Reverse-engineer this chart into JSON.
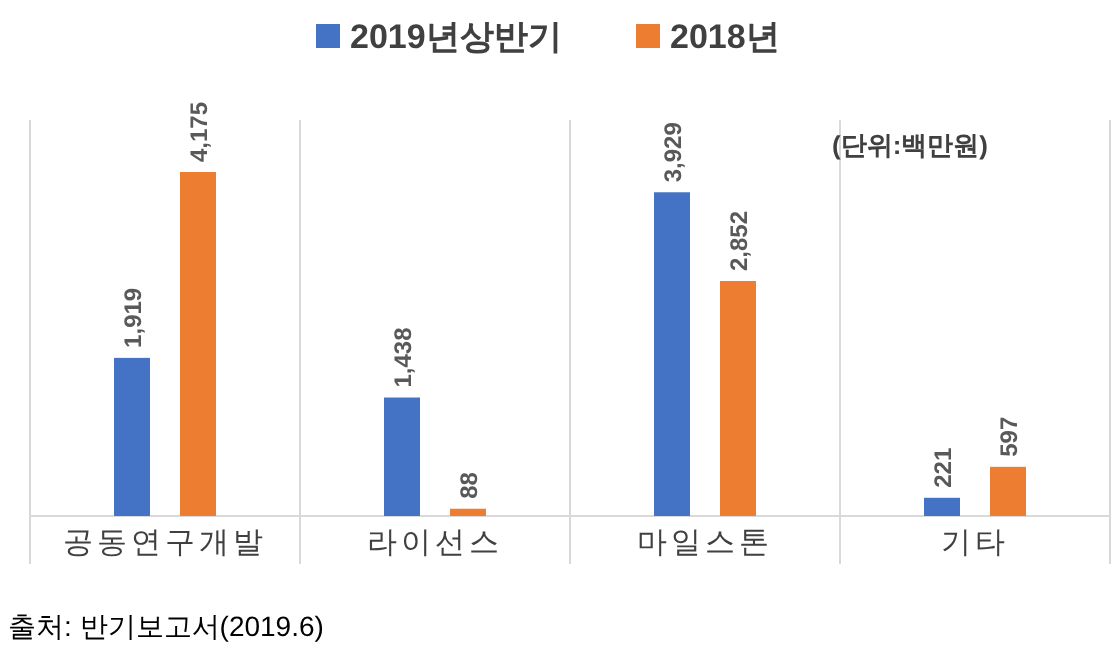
{
  "chart_data": {
    "type": "bar",
    "relative": false,
    "categories": [
      "공동연구개발",
      "라이선스",
      "마일스톤",
      "기타"
    ],
    "series": [
      {
        "name": "2019년상반기",
        "color": "#4472c4",
        "values": [
          1919,
          1438,
          3929,
          221
        ],
        "value_labels": [
          "1,919",
          "1,438",
          "3,929",
          "221"
        ]
      },
      {
        "name": "2018년",
        "color": "#ed7d31",
        "values": [
          4175,
          88,
          2852,
          597
        ],
        "value_labels": [
          "4,175",
          "88",
          "2,852",
          "597"
        ]
      }
    ],
    "legend": "top",
    "grid": false,
    "annotations": [
      "(단위:백만원)",
      "출처: 반기보고서(2019.6)"
    ]
  }
}
